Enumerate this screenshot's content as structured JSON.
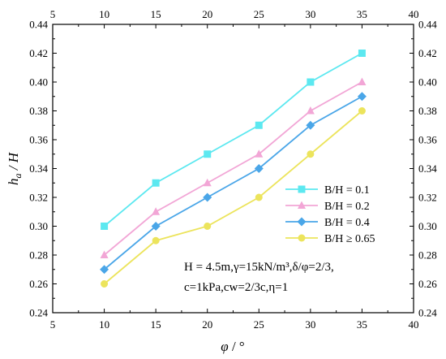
{
  "chart_data": {
    "type": "line",
    "xlabel_symbol": "φ",
    "xlabel_unit": " / °",
    "ylabel_symbol": "h",
    "ylabel_sub": "a",
    "ylabel_rest": " / H",
    "xlim": [
      5,
      40
    ],
    "ylim": [
      0.24,
      0.44
    ],
    "xticks": [
      5,
      10,
      15,
      20,
      25,
      30,
      35,
      40
    ],
    "yticks": [
      "0.24",
      "0.26",
      "0.28",
      "0.30",
      "0.32",
      "0.34",
      "0.36",
      "0.38",
      "0.40",
      "0.42",
      "0.44"
    ],
    "grid": false,
    "mirror_axes": true,
    "legend_position": "center-right",
    "x": [
      10,
      15,
      20,
      25,
      30,
      35
    ],
    "series": [
      {
        "name": "B/H = 0.1",
        "values": [
          0.3,
          0.33,
          0.35,
          0.37,
          0.4,
          0.42
        ],
        "color": "#5ce8f0",
        "marker": "square"
      },
      {
        "name": "B/H = 0.2",
        "values": [
          0.28,
          0.31,
          0.33,
          0.35,
          0.38,
          0.4
        ],
        "color": "#f2a6d6",
        "marker": "triangle"
      },
      {
        "name": "B/H = 0.4",
        "values": [
          0.27,
          0.3,
          0.32,
          0.34,
          0.37,
          0.39
        ],
        "color": "#4aa6e8",
        "marker": "diamond"
      },
      {
        "name": "B/H ≥ 0.65",
        "values": [
          0.26,
          0.29,
          0.3,
          0.32,
          0.35,
          0.38
        ],
        "color": "#ece45c",
        "marker": "circle"
      }
    ],
    "annotations": [
      "H = 4.5m,γ=15kN/m³,δ/φ=2/3,",
      "c=1kPa,cw=2/3c,η=1"
    ]
  }
}
